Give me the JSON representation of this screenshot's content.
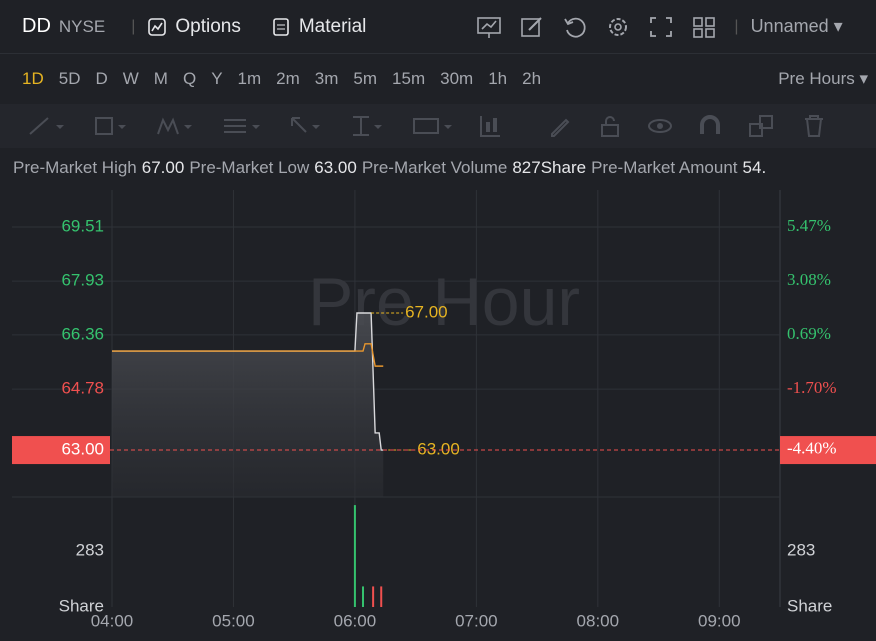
{
  "header": {
    "symbol": "DD",
    "exchange": "NYSE",
    "options": "Options",
    "material": "Material",
    "layout": "Unnamed"
  },
  "periods": {
    "items": [
      "1D",
      "5D",
      "D",
      "W",
      "M",
      "Q",
      "Y",
      "1m",
      "2m",
      "3m",
      "5m",
      "15m",
      "30m",
      "1h",
      "2h"
    ],
    "selected": "1D",
    "session": "Pre Hours"
  },
  "stats": [
    {
      "label": "Pre-Market High",
      "value": "67.00"
    },
    {
      "label": "Pre-Market Low",
      "value": "63.00"
    },
    {
      "label": "Pre-Market Volume",
      "value": "827Share"
    },
    {
      "label": "Pre-Market Amount",
      "value": "54."
    }
  ],
  "chart_data": [
    {
      "type": "line",
      "watermark": "Pre Hour",
      "x": [
        "04:00",
        "06:00",
        "06:01",
        "06:04",
        "06:05",
        "06:08",
        "06:10",
        "06:12",
        "06:13",
        "06:14"
      ],
      "xlim": [
        "04:00",
        "09:30"
      ],
      "xticks": [
        "04:00",
        "05:00",
        "06:00",
        "07:00",
        "08:00",
        "09:00"
      ],
      "ylim": [
        61.63,
        70.59
      ],
      "yticks": [
        69.51,
        67.93,
        66.36,
        64.78
      ],
      "y2lim": [
        -6.49,
        7.11
      ],
      "y2ticks": [
        {
          "value": 5.47,
          "label": "5.47%"
        },
        {
          "value": 3.08,
          "label": "3.08%"
        },
        {
          "value": 0.69,
          "label": "0.69%"
        },
        {
          "value": -1.7,
          "label": "-1.70%"
        }
      ],
      "series": [
        {
          "color": "#d9d9dc",
          "area": true,
          "values": [
            65.89,
            65.89,
            67.0,
            67.0,
            67.0,
            67.0,
            63.5,
            63.5,
            63.0,
            63.0
          ]
        },
        {
          "color": "#e8962e",
          "values": [
            65.89,
            65.89,
            65.89,
            65.89,
            66.1,
            66.1,
            65.45,
            65.45,
            65.45,
            65.45
          ]
        }
      ],
      "current": {
        "value": 63,
        "label": "63.00",
        "pct": {
          "value": -4.4,
          "label": "-4.40%"
        },
        "color": "#f0504f"
      },
      "high_marker": {
        "value": 67,
        "label": "67.00",
        "x": "06:08"
      },
      "low_marker": {
        "value": 63,
        "label": "63.00",
        "x": "06:14"
      },
      "marker_color": "#e6b422",
      "up_color": "#35c26e",
      "down_color": "#f0504f",
      "grid": true
    },
    {
      "type": "bar",
      "x": [
        "06:00",
        "06:04",
        "06:09",
        "06:13"
      ],
      "values": [
        515,
        104,
        104,
        104
      ],
      "colors": [
        "#35c26e",
        "#35c26e",
        "#f0504f",
        "#f0504f"
      ],
      "xlim": [
        "04:00",
        "09:30"
      ],
      "ylim": [
        0,
        556
      ],
      "yticks": [
        283
      ],
      "unit": "Share"
    }
  ]
}
